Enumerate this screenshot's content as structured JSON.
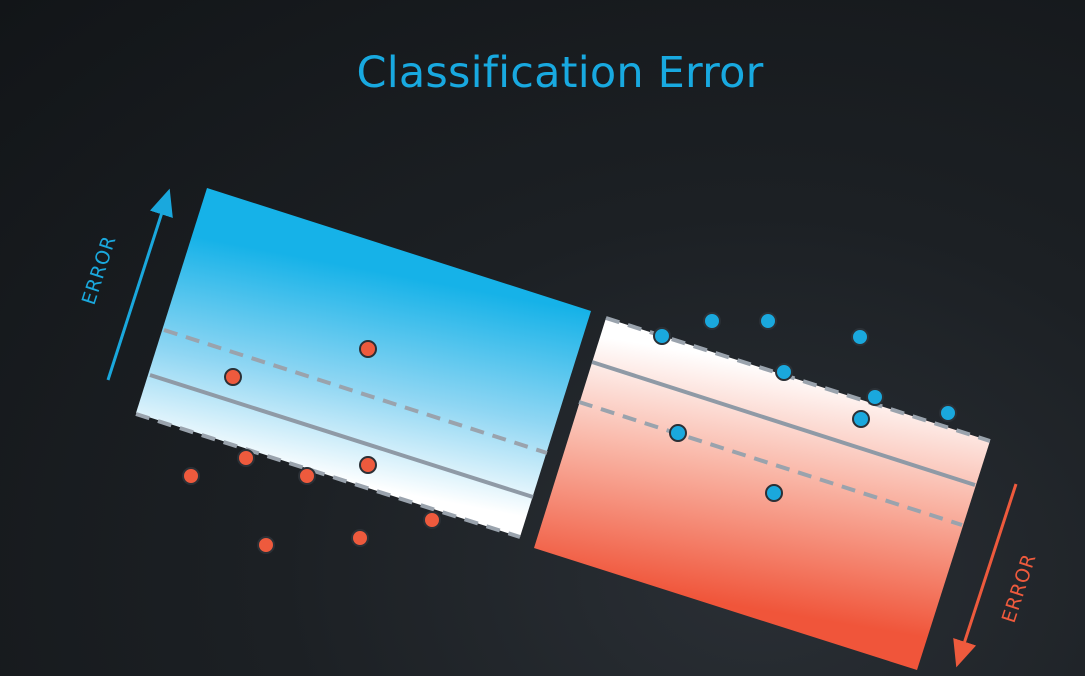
{
  "title": "Classification Error",
  "left_error_label": "ERROR",
  "right_error_label": "ERROR",
  "colors": {
    "title": "#18a9e0",
    "blue_region": "#16b0e6",
    "red_region": "#f15a3c",
    "blue_point": "#1aa8dd",
    "red_point": "#ee5a3d",
    "boundary_line": "#8f9aa6",
    "margin_line": "#9aa3ad"
  }
}
